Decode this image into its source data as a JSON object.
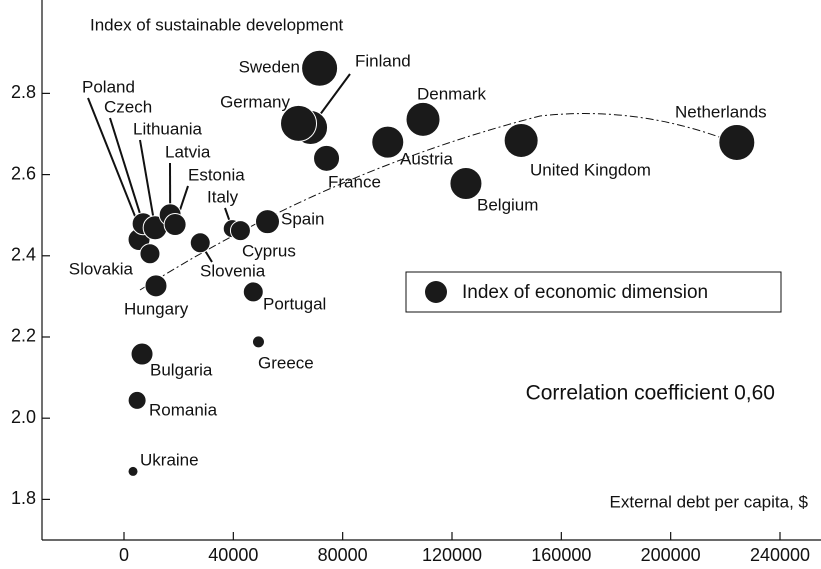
{
  "chart_data": {
    "type": "scatter",
    "y_label": "Index of sustainable development",
    "x_label": "External debt per capita, $",
    "annotation": "Correlation coefficient 0,60",
    "legend": "Index of economic dimension",
    "color": "#1a1a1a",
    "points": [
      "Sweden",
      "Finland",
      "Germany",
      "France",
      "Denmark",
      "Austria",
      "Netherlands",
      "United Kingdom",
      "Belgium",
      "Spain",
      "Italy",
      "Cyprus",
      "Slovenia",
      "Portugal",
      "Greece",
      "Hungary",
      "Bulgaria",
      "Romania",
      "Ukraine",
      "Slovakia",
      "Poland",
      "Czech",
      "Lithuania",
      "Latvia",
      "Estonia"
    ],
    "x": [
      71560,
      68250,
      63850,
      74100,
      109400,
      96500,
      224200,
      145300,
      125100,
      52500,
      39600,
      42600,
      27900,
      47300,
      49200,
      11700,
      6600,
      4800,
      3300,
      5500,
      9500,
      7000,
      11400,
      16900,
      18700
    ],
    "y": [
      2.862,
      2.716,
      2.726,
      2.64,
      2.736,
      2.68,
      2.679,
      2.684,
      2.578,
      2.484,
      2.467,
      2.462,
      2.432,
      2.311,
      2.188,
      2.326,
      2.158,
      2.044,
      1.869,
      2.44,
      2.405,
      2.479,
      2.469,
      2.501,
      2.477
    ],
    "sizes": [
      18,
      17,
      18,
      13,
      17,
      16,
      18,
      17,
      16,
      12,
      9,
      10,
      10,
      10,
      6,
      11,
      11,
      9,
      5,
      11,
      10,
      11,
      12,
      11,
      11
    ],
    "xlim": [
      -30000,
      255000
    ],
    "ylim": [
      1.7,
      3.03
    ],
    "xticks": [
      0,
      40000,
      80000,
      120000,
      160000,
      200000,
      240000
    ],
    "yticks": [
      1.8,
      {
        "value": 2,
        "label": "2.0"
      },
      2.2,
      2.4,
      2.6,
      2.8
    ]
  }
}
